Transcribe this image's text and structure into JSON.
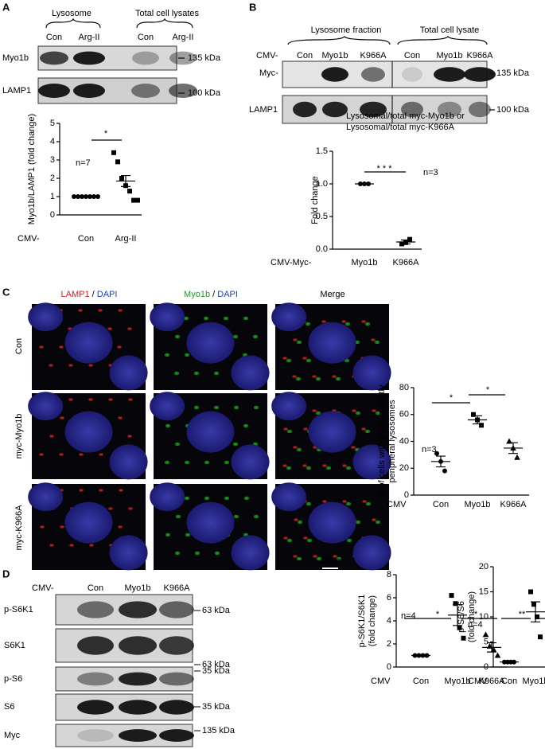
{
  "panels": {
    "letters": [
      "A",
      "B",
      "C",
      "D"
    ],
    "a": {
      "headers": [
        "Lysosome",
        "Total cell lysates"
      ],
      "lanes": [
        "Con",
        "Arg-II",
        "Con",
        "Arg-II"
      ],
      "rows": [
        "Myo1b",
        "LAMP1"
      ],
      "markers": [
        "135 kDa",
        "100 kDa"
      ]
    },
    "b": {
      "headers": [
        "Lysosome fraction",
        "Total cell lysate"
      ],
      "prefix": "CMV-",
      "lanes": [
        "Con",
        "Myo1b",
        "K966A",
        "Con",
        "Myo1b",
        "K966A"
      ],
      "rows": [
        "Myc-",
        "LAMP1"
      ],
      "markers": [
        "135 kDa",
        "100 kDa"
      ]
    },
    "c": {
      "column_headers": [
        [
          "LAMP1",
          "/",
          "DAPI"
        ],
        [
          "Myo1b",
          "/",
          "DAPI"
        ],
        [
          "Merge"
        ]
      ],
      "rows": [
        "Con",
        "myc-Myo1b",
        "myc-K966A"
      ],
      "scale": "10µm"
    },
    "d": {
      "prefix": "CMV-",
      "lanes": [
        "Con",
        "Myo1b",
        "K966A"
      ],
      "rows": [
        "p-S6K1",
        "S6K1",
        "p-S6",
        "S6",
        "Myc"
      ],
      "markers": [
        "63 kDa",
        "63 kDa",
        "35 kDa",
        "35 kDa",
        "135 kDa"
      ]
    }
  },
  "chart_data": [
    {
      "type": "dotplot",
      "y_label": [
        "Myo1b/LAMP1 (fold change)"
      ],
      "x_prefix": "CMV-",
      "ylim": [
        0,
        5
      ],
      "yticks": [
        0,
        1,
        2,
        3,
        4,
        5
      ],
      "annotations": [
        "n=7",
        "*"
      ],
      "groups": [
        {
          "name": "Con",
          "marker": "circle",
          "points": [
            1,
            1,
            1,
            1,
            1,
            1,
            1
          ],
          "mean": 1,
          "sem": 0
        },
        {
          "name": "Arg-II",
          "marker": "square",
          "points": [
            3.4,
            2.9,
            2.0,
            1.6,
            1.3,
            0.8,
            0.8
          ],
          "mean": 1.85,
          "sem": 0.3
        }
      ]
    },
    {
      "type": "dotplot",
      "title": [
        "Lysosomal/total myc-Myo1b or",
        "Lysosomal/total myc-K966A"
      ],
      "y_label": [
        "Fold change"
      ],
      "x_prefix": "CMV-Myc-",
      "ylim": [
        0,
        1.5
      ],
      "yticks": [
        {
          "value": 0,
          "label": "0.0"
        },
        {
          "value": 0.5,
          "label": "0.5"
        },
        {
          "value": 1,
          "label": "1.0"
        },
        {
          "value": 1.5,
          "label": "1.5"
        }
      ],
      "annotations": [
        "* * *",
        "n=3"
      ],
      "groups": [
        {
          "name": "Myo1b",
          "marker": "circle",
          "points": [
            1,
            1,
            1
          ],
          "mean": 1,
          "sem": 0
        },
        {
          "name": "K966A",
          "marker": "square",
          "points": [
            0.08,
            0.1,
            0.15
          ],
          "mean": 0.11,
          "sem": 0.03
        }
      ]
    },
    {
      "type": "dotplot",
      "y_label": [
        "% of cells with predominantly",
        "peripheral lysosomes"
      ],
      "x_prefix": "CMV",
      "ylim": [
        0,
        80
      ],
      "yticks": [
        0,
        20,
        40,
        60,
        80
      ],
      "annotations": [
        "n=3",
        "*",
        "*"
      ],
      "groups": [
        {
          "name": "Con",
          "marker": "circle",
          "points": [
            31,
            25,
            18
          ],
          "mean": 25,
          "sem": 4
        },
        {
          "name": "Myo1b",
          "marker": "square",
          "points": [
            60,
            56,
            52
          ],
          "mean": 56,
          "sem": 3
        },
        {
          "name": "K966A",
          "marker": "triangle",
          "points": [
            40,
            35,
            28
          ],
          "mean": 35,
          "sem": 4
        }
      ]
    },
    {
      "type": "dotplot",
      "y_label": [
        "p-S6K1/S6K1",
        "(fold change)"
      ],
      "x_prefix": "CMV",
      "ylim": [
        0,
        8
      ],
      "yticks": [
        0,
        2,
        4,
        6,
        8
      ],
      "annotations": [
        "n=4",
        "*",
        "*"
      ],
      "groups": [
        {
          "name": "Con",
          "marker": "circle",
          "points": [
            1,
            1,
            1,
            1
          ],
          "mean": 1,
          "sem": 0
        },
        {
          "name": "Myo1b",
          "marker": "square",
          "points": [
            6.2,
            5.5,
            3.4,
            2.5
          ],
          "mean": 4.5,
          "sem": 0.9
        },
        {
          "name": "K966A",
          "marker": "triangle",
          "points": [
            2.8,
            1.8,
            1.5,
            1.0
          ],
          "mean": 1.7,
          "sem": 0.4
        }
      ]
    },
    {
      "type": "dotplot",
      "y_label": [
        "p-S6/S6",
        "(fold change)"
      ],
      "x_prefix": "CMV",
      "ylim": [
        0,
        20
      ],
      "yticks": [
        0,
        5,
        10,
        15,
        20
      ],
      "annotations": [
        "n=4",
        "**",
        "*"
      ],
      "groups": [
        {
          "name": "Con",
          "marker": "circle",
          "points": [
            1,
            1,
            1,
            1
          ],
          "mean": 1,
          "sem": 0
        },
        {
          "name": "Myo1b",
          "marker": "square",
          "points": [
            15,
            12.5,
            10,
            6
          ],
          "mean": 11,
          "sem": 2
        },
        {
          "name": "K966A",
          "marker": "triangle",
          "points": [
            5.5,
            4.5,
            3.5,
            3.2
          ],
          "mean": 4.3,
          "sem": 0.6
        }
      ]
    }
  ]
}
